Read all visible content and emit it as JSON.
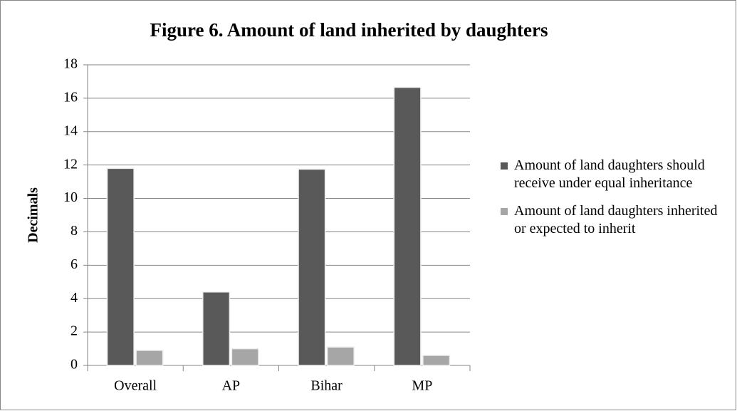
{
  "chart_data": {
    "type": "bar",
    "title": "Figure 6. Amount of land inherited by daughters",
    "y_label": "Decimals",
    "categories": [
      "Overall",
      "AP",
      "Bihar",
      "MP"
    ],
    "series": [
      {
        "name": "Amount of land daughters should receive under equal inheritance",
        "color": "#595959",
        "values": [
          11.8,
          4.4,
          11.75,
          16.65
        ]
      },
      {
        "name": "Amount of land daughters inherited or expected to inherit",
        "color": "#a6a6a6",
        "values": [
          0.9,
          1.0,
          1.1,
          0.6
        ]
      }
    ],
    "ylim": [
      0,
      18
    ],
    "yticks": [
      0,
      2,
      4,
      6,
      8,
      10,
      12,
      14,
      16,
      18
    ],
    "grid": true,
    "legend": "right"
  }
}
